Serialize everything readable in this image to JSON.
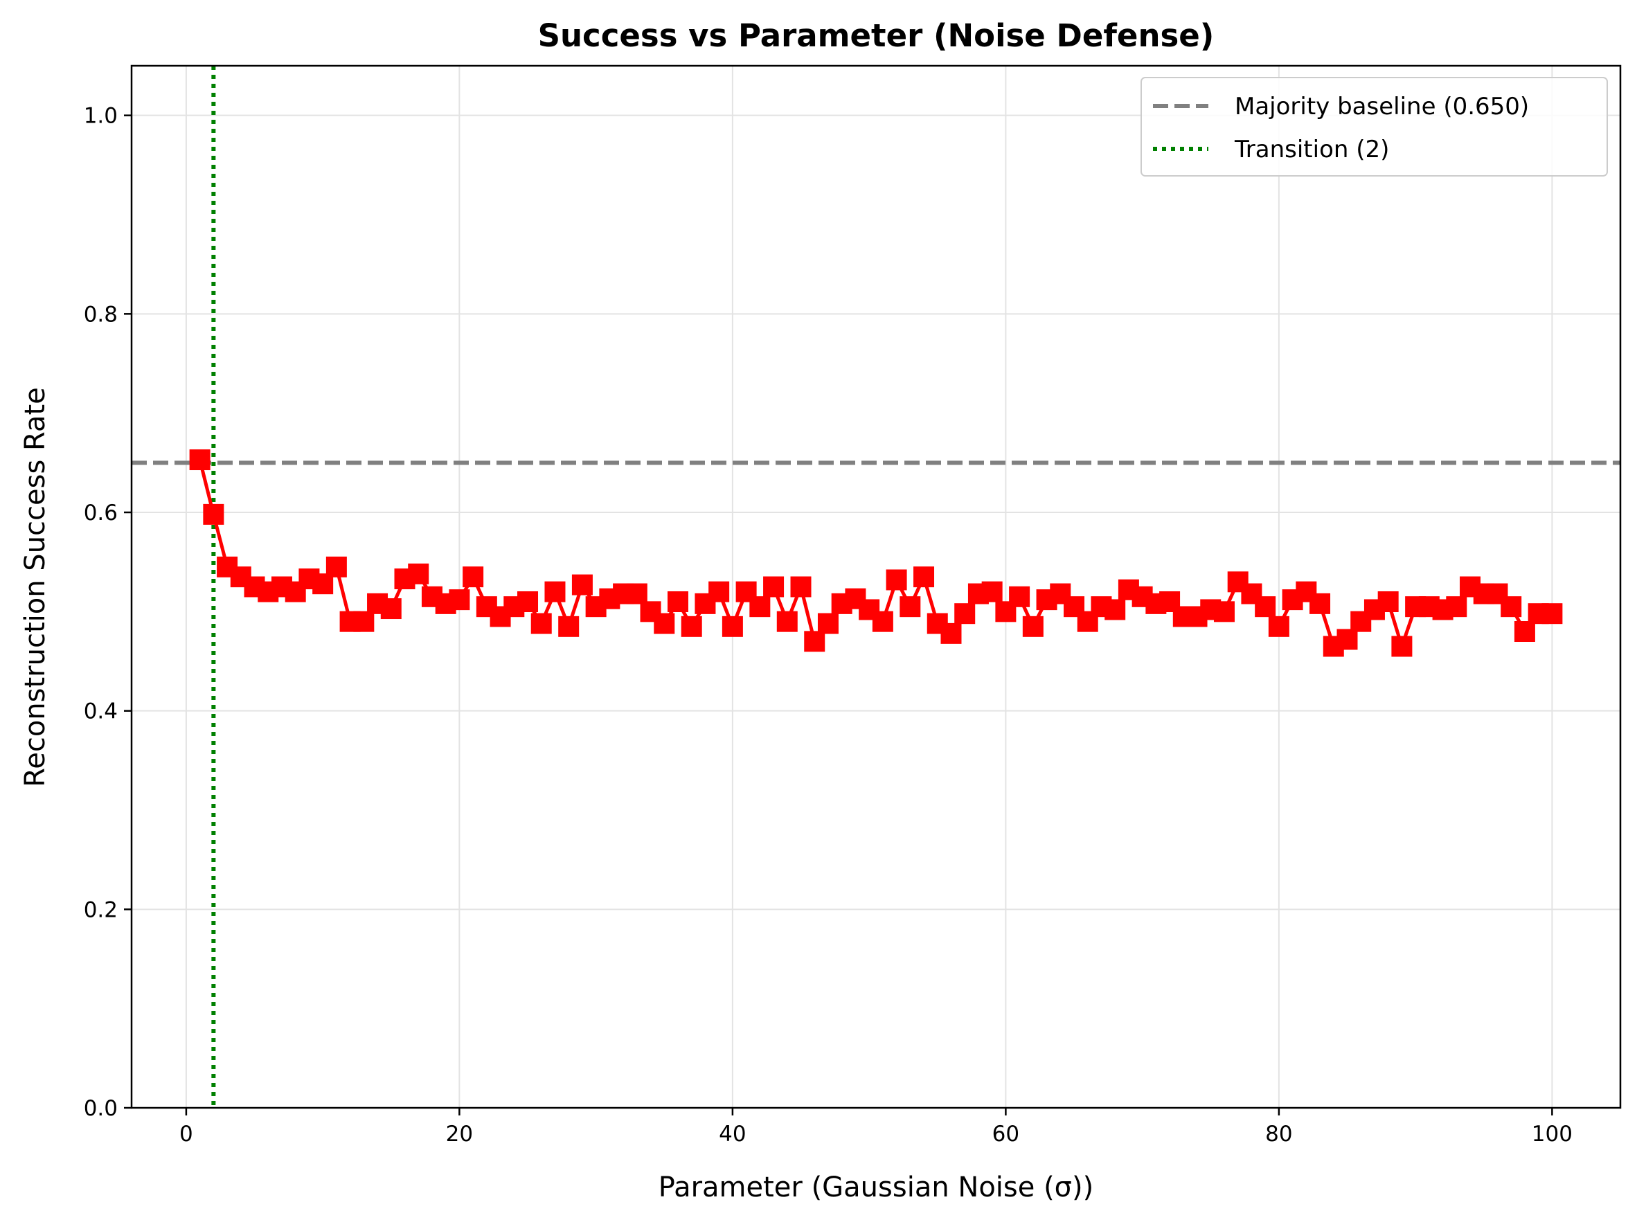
{
  "chart_data": {
    "type": "line",
    "title": "Success vs Parameter (Noise Defense)",
    "xlabel": "Parameter (Gaussian Noise (σ))",
    "ylabel": "Reconstruction Success Rate",
    "xlim": [
      -4,
      105
    ],
    "ylim": [
      0.0,
      1.05
    ],
    "x_ticks": [
      0,
      20,
      40,
      60,
      80,
      100
    ],
    "y_ticks": [
      0.0,
      0.2,
      0.4,
      0.6,
      0.8,
      1.0
    ],
    "x_tick_labels": [
      "0",
      "20",
      "40",
      "60",
      "80",
      "100"
    ],
    "y_tick_labels": [
      "0.0",
      "0.2",
      "0.4",
      "0.6",
      "0.8",
      "1.0"
    ],
    "grid": true,
    "legend_position": "top-right",
    "series": [
      {
        "color": "#ff0000",
        "marker": "square",
        "x": [
          1,
          2,
          3,
          4,
          5,
          6,
          7,
          8,
          9,
          10,
          11,
          12,
          13,
          14,
          15,
          16,
          17,
          18,
          19,
          20,
          21,
          22,
          23,
          24,
          25,
          26,
          27,
          28,
          29,
          30,
          31,
          32,
          33,
          34,
          35,
          36,
          37,
          38,
          39,
          40,
          41,
          42,
          43,
          44,
          45,
          46,
          47,
          48,
          49,
          50,
          51,
          52,
          53,
          54,
          55,
          56,
          57,
          58,
          59,
          60,
          61,
          62,
          63,
          64,
          65,
          66,
          67,
          68,
          69,
          70,
          71,
          72,
          73,
          74,
          75,
          76,
          77,
          78,
          79,
          80,
          81,
          82,
          83,
          84,
          85,
          86,
          87,
          88,
          89,
          90,
          91,
          92,
          93,
          94,
          95,
          96,
          97,
          98,
          99,
          100
        ],
        "values": [
          0.653,
          0.598,
          0.545,
          0.535,
          0.525,
          0.52,
          0.525,
          0.52,
          0.533,
          0.528,
          0.545,
          0.49,
          0.49,
          0.508,
          0.503,
          0.533,
          0.538,
          0.515,
          0.508,
          0.512,
          0.535,
          0.505,
          0.495,
          0.505,
          0.51,
          0.488,
          0.52,
          0.485,
          0.527,
          0.505,
          0.513,
          0.518,
          0.518,
          0.5,
          0.488,
          0.51,
          0.485,
          0.508,
          0.52,
          0.485,
          0.52,
          0.505,
          0.525,
          0.49,
          0.525,
          0.47,
          0.488,
          0.508,
          0.513,
          0.502,
          0.49,
          0.532,
          0.505,
          0.535,
          0.488,
          0.478,
          0.498,
          0.518,
          0.52,
          0.5,
          0.515,
          0.485,
          0.512,
          0.518,
          0.505,
          0.49,
          0.505,
          0.502,
          0.522,
          0.515,
          0.508,
          0.51,
          0.495,
          0.495,
          0.502,
          0.5,
          0.53,
          0.518,
          0.505,
          0.485,
          0.512,
          0.52,
          0.508,
          0.465,
          0.472,
          0.49,
          0.502,
          0.51,
          0.465,
          0.505,
          0.505,
          0.502,
          0.505,
          0.525,
          0.518,
          0.518,
          0.505,
          0.48,
          0.498,
          0.498
        ]
      }
    ],
    "reference_lines": [
      {
        "orientation": "horizontal",
        "value": 0.65,
        "color": "#808080",
        "style": "dashed",
        "label": "Majority baseline (0.650)"
      },
      {
        "orientation": "vertical",
        "value": 2,
        "color": "#008000",
        "style": "dotted",
        "label": "Transition (2)"
      }
    ],
    "colors": {
      "series": "#ff0000",
      "baseline": "#808080",
      "transition": "#008000",
      "grid": "#e3e3e3"
    }
  }
}
